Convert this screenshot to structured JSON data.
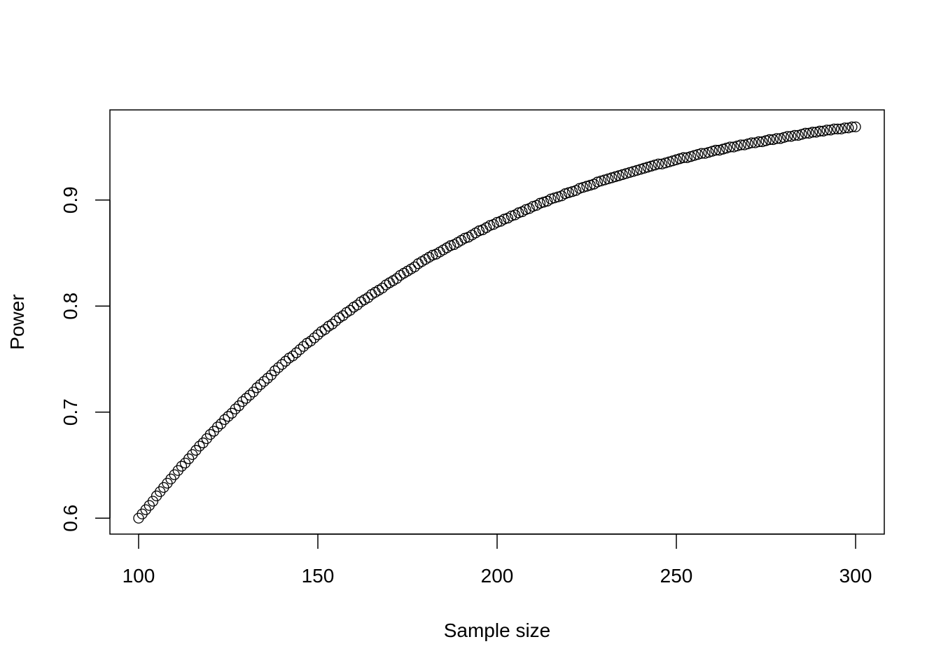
{
  "chart_data": {
    "type": "scatter",
    "xlabel": "Sample size",
    "ylabel": "Power",
    "color": "#000000",
    "marker": "open-circle",
    "xlim": [
      92,
      308
    ],
    "ylim": [
      0.585,
      0.985
    ],
    "xticks": [
      100,
      150,
      200,
      250,
      300
    ],
    "yticks": [
      0.6,
      0.7,
      0.8,
      0.9
    ],
    "x": [
      100,
      101,
      102,
      103,
      104,
      105,
      106,
      107,
      108,
      109,
      110,
      111,
      112,
      113,
      114,
      115,
      116,
      117,
      118,
      119,
      120,
      121,
      122,
      123,
      124,
      125,
      126,
      127,
      128,
      129,
      130,
      131,
      132,
      133,
      134,
      135,
      136,
      137,
      138,
      139,
      140,
      141,
      142,
      143,
      144,
      145,
      146,
      147,
      148,
      149,
      150,
      151,
      152,
      153,
      154,
      155,
      156,
      157,
      158,
      159,
      160,
      161,
      162,
      163,
      164,
      165,
      166,
      167,
      168,
      169,
      170,
      171,
      172,
      173,
      174,
      175,
      176,
      177,
      178,
      179,
      180,
      181,
      182,
      183,
      184,
      185,
      186,
      187,
      188,
      189,
      190,
      191,
      192,
      193,
      194,
      195,
      196,
      197,
      198,
      199,
      200,
      201,
      202,
      203,
      204,
      205,
      206,
      207,
      208,
      209,
      210,
      211,
      212,
      213,
      214,
      215,
      216,
      217,
      218,
      219,
      220,
      221,
      222,
      223,
      224,
      225,
      226,
      227,
      228,
      229,
      230,
      231,
      232,
      233,
      234,
      235,
      236,
      237,
      238,
      239,
      240,
      241,
      242,
      243,
      244,
      245,
      246,
      247,
      248,
      249,
      250,
      251,
      252,
      253,
      254,
      255,
      256,
      257,
      258,
      259,
      260,
      261,
      262,
      263,
      264,
      265,
      266,
      267,
      268,
      269,
      270,
      271,
      272,
      273,
      274,
      275,
      276,
      277,
      278,
      279,
      280,
      281,
      282,
      283,
      284,
      285,
      286,
      287,
      288,
      289,
      290,
      291,
      292,
      293,
      294,
      295,
      296,
      297,
      298,
      299,
      300
    ],
    "values": [
      0.6,
      0.604,
      0.608,
      0.612,
      0.616,
      0.621,
      0.625,
      0.629,
      0.633,
      0.637,
      0.641,
      0.645,
      0.649,
      0.652,
      0.656,
      0.66,
      0.664,
      0.668,
      0.671,
      0.675,
      0.679,
      0.682,
      0.686,
      0.689,
      0.693,
      0.696,
      0.699,
      0.703,
      0.706,
      0.71,
      0.713,
      0.716,
      0.719,
      0.723,
      0.726,
      0.729,
      0.732,
      0.735,
      0.739,
      0.742,
      0.745,
      0.748,
      0.751,
      0.753,
      0.756,
      0.759,
      0.762,
      0.765,
      0.767,
      0.77,
      0.773,
      0.776,
      0.778,
      0.781,
      0.783,
      0.786,
      0.789,
      0.791,
      0.794,
      0.796,
      0.799,
      0.801,
      0.804,
      0.806,
      0.808,
      0.811,
      0.813,
      0.815,
      0.817,
      0.82,
      0.822,
      0.824,
      0.826,
      0.829,
      0.831,
      0.833,
      0.835,
      0.837,
      0.84,
      0.842,
      0.844,
      0.846,
      0.848,
      0.849,
      0.851,
      0.853,
      0.855,
      0.857,
      0.858,
      0.86,
      0.862,
      0.864,
      0.865,
      0.867,
      0.869,
      0.871,
      0.872,
      0.874,
      0.876,
      0.877,
      0.879,
      0.88,
      0.882,
      0.883,
      0.885,
      0.886,
      0.888,
      0.889,
      0.891,
      0.892,
      0.894,
      0.895,
      0.897,
      0.898,
      0.899,
      0.901,
      0.902,
      0.903,
      0.904,
      0.906,
      0.907,
      0.908,
      0.909,
      0.911,
      0.912,
      0.913,
      0.914,
      0.915,
      0.917,
      0.918,
      0.919,
      0.92,
      0.921,
      0.922,
      0.923,
      0.924,
      0.925,
      0.926,
      0.927,
      0.928,
      0.929,
      0.93,
      0.931,
      0.932,
      0.933,
      0.934,
      0.934,
      0.935,
      0.936,
      0.937,
      0.938,
      0.939,
      0.94,
      0.94,
      0.941,
      0.942,
      0.943,
      0.944,
      0.944,
      0.945,
      0.946,
      0.947,
      0.947,
      0.948,
      0.949,
      0.95,
      0.95,
      0.951,
      0.952,
      0.952,
      0.953,
      0.954,
      0.954,
      0.955,
      0.955,
      0.956,
      0.957,
      0.957,
      0.958,
      0.958,
      0.959,
      0.96,
      0.96,
      0.961,
      0.961,
      0.962,
      0.963,
      0.963,
      0.964,
      0.964,
      0.965,
      0.965,
      0.966,
      0.966,
      0.967,
      0.967,
      0.967,
      0.968,
      0.968,
      0.969,
      0.969
    ]
  }
}
